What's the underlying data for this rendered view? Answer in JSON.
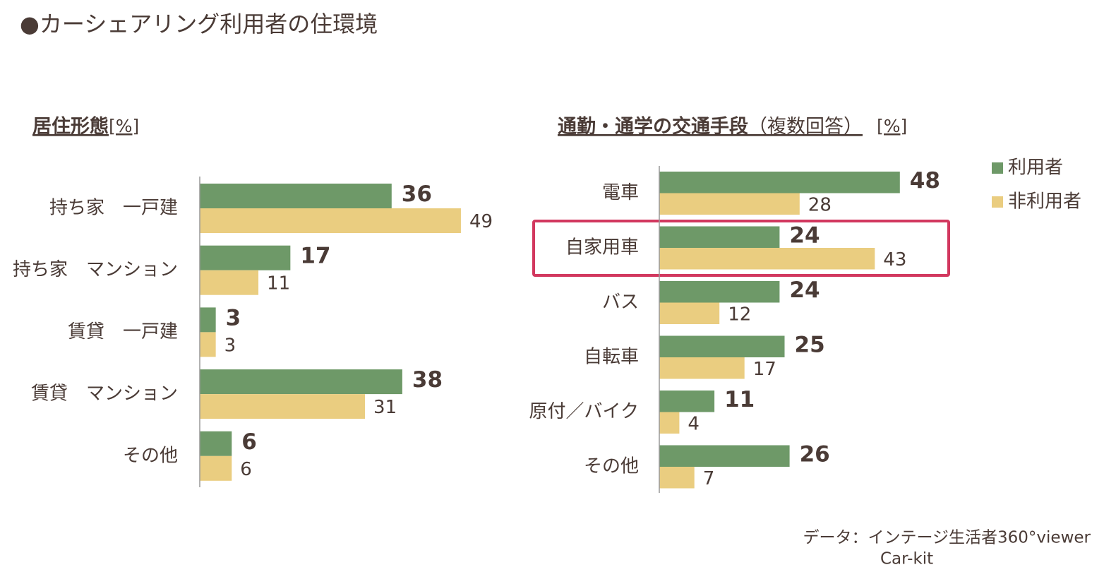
{
  "title": "●カーシェアリング利用者の住環境",
  "source": [
    "データ：インテージ生活者360°viewer",
    "Car-kit"
  ],
  "chart_data": [
    {
      "type": "bar",
      "orientation": "horizontal",
      "title": "居住形態",
      "unit": "[%]",
      "categories": [
        "持ち家　一戸建",
        "持ち家　マンション",
        "賃貸　一戸建",
        "賃貸　マンション",
        "その他"
      ],
      "series": [
        {
          "color": "#6e9968",
          "values": [
            36,
            17,
            3,
            38,
            6
          ]
        },
        {
          "color": "#eacd80",
          "values": [
            49,
            11,
            3,
            31,
            6
          ]
        }
      ]
    },
    {
      "type": "bar",
      "orientation": "horizontal",
      "title": "通勤・通学の交通手段",
      "subtitle": "（複数回答）",
      "unit": "[%]",
      "categories": [
        "電車",
        "自家用車",
        "バス",
        "自転車",
        "原付／バイク",
        "その他"
      ],
      "series": [
        {
          "name": "利用者",
          "color": "#6e9968",
          "values": [
            48,
            24,
            24,
            25,
            11,
            26
          ]
        },
        {
          "name": "非利用者",
          "color": "#eacd80",
          "values": [
            28,
            43,
            12,
            17,
            4,
            7
          ]
        }
      ]
    }
  ]
}
